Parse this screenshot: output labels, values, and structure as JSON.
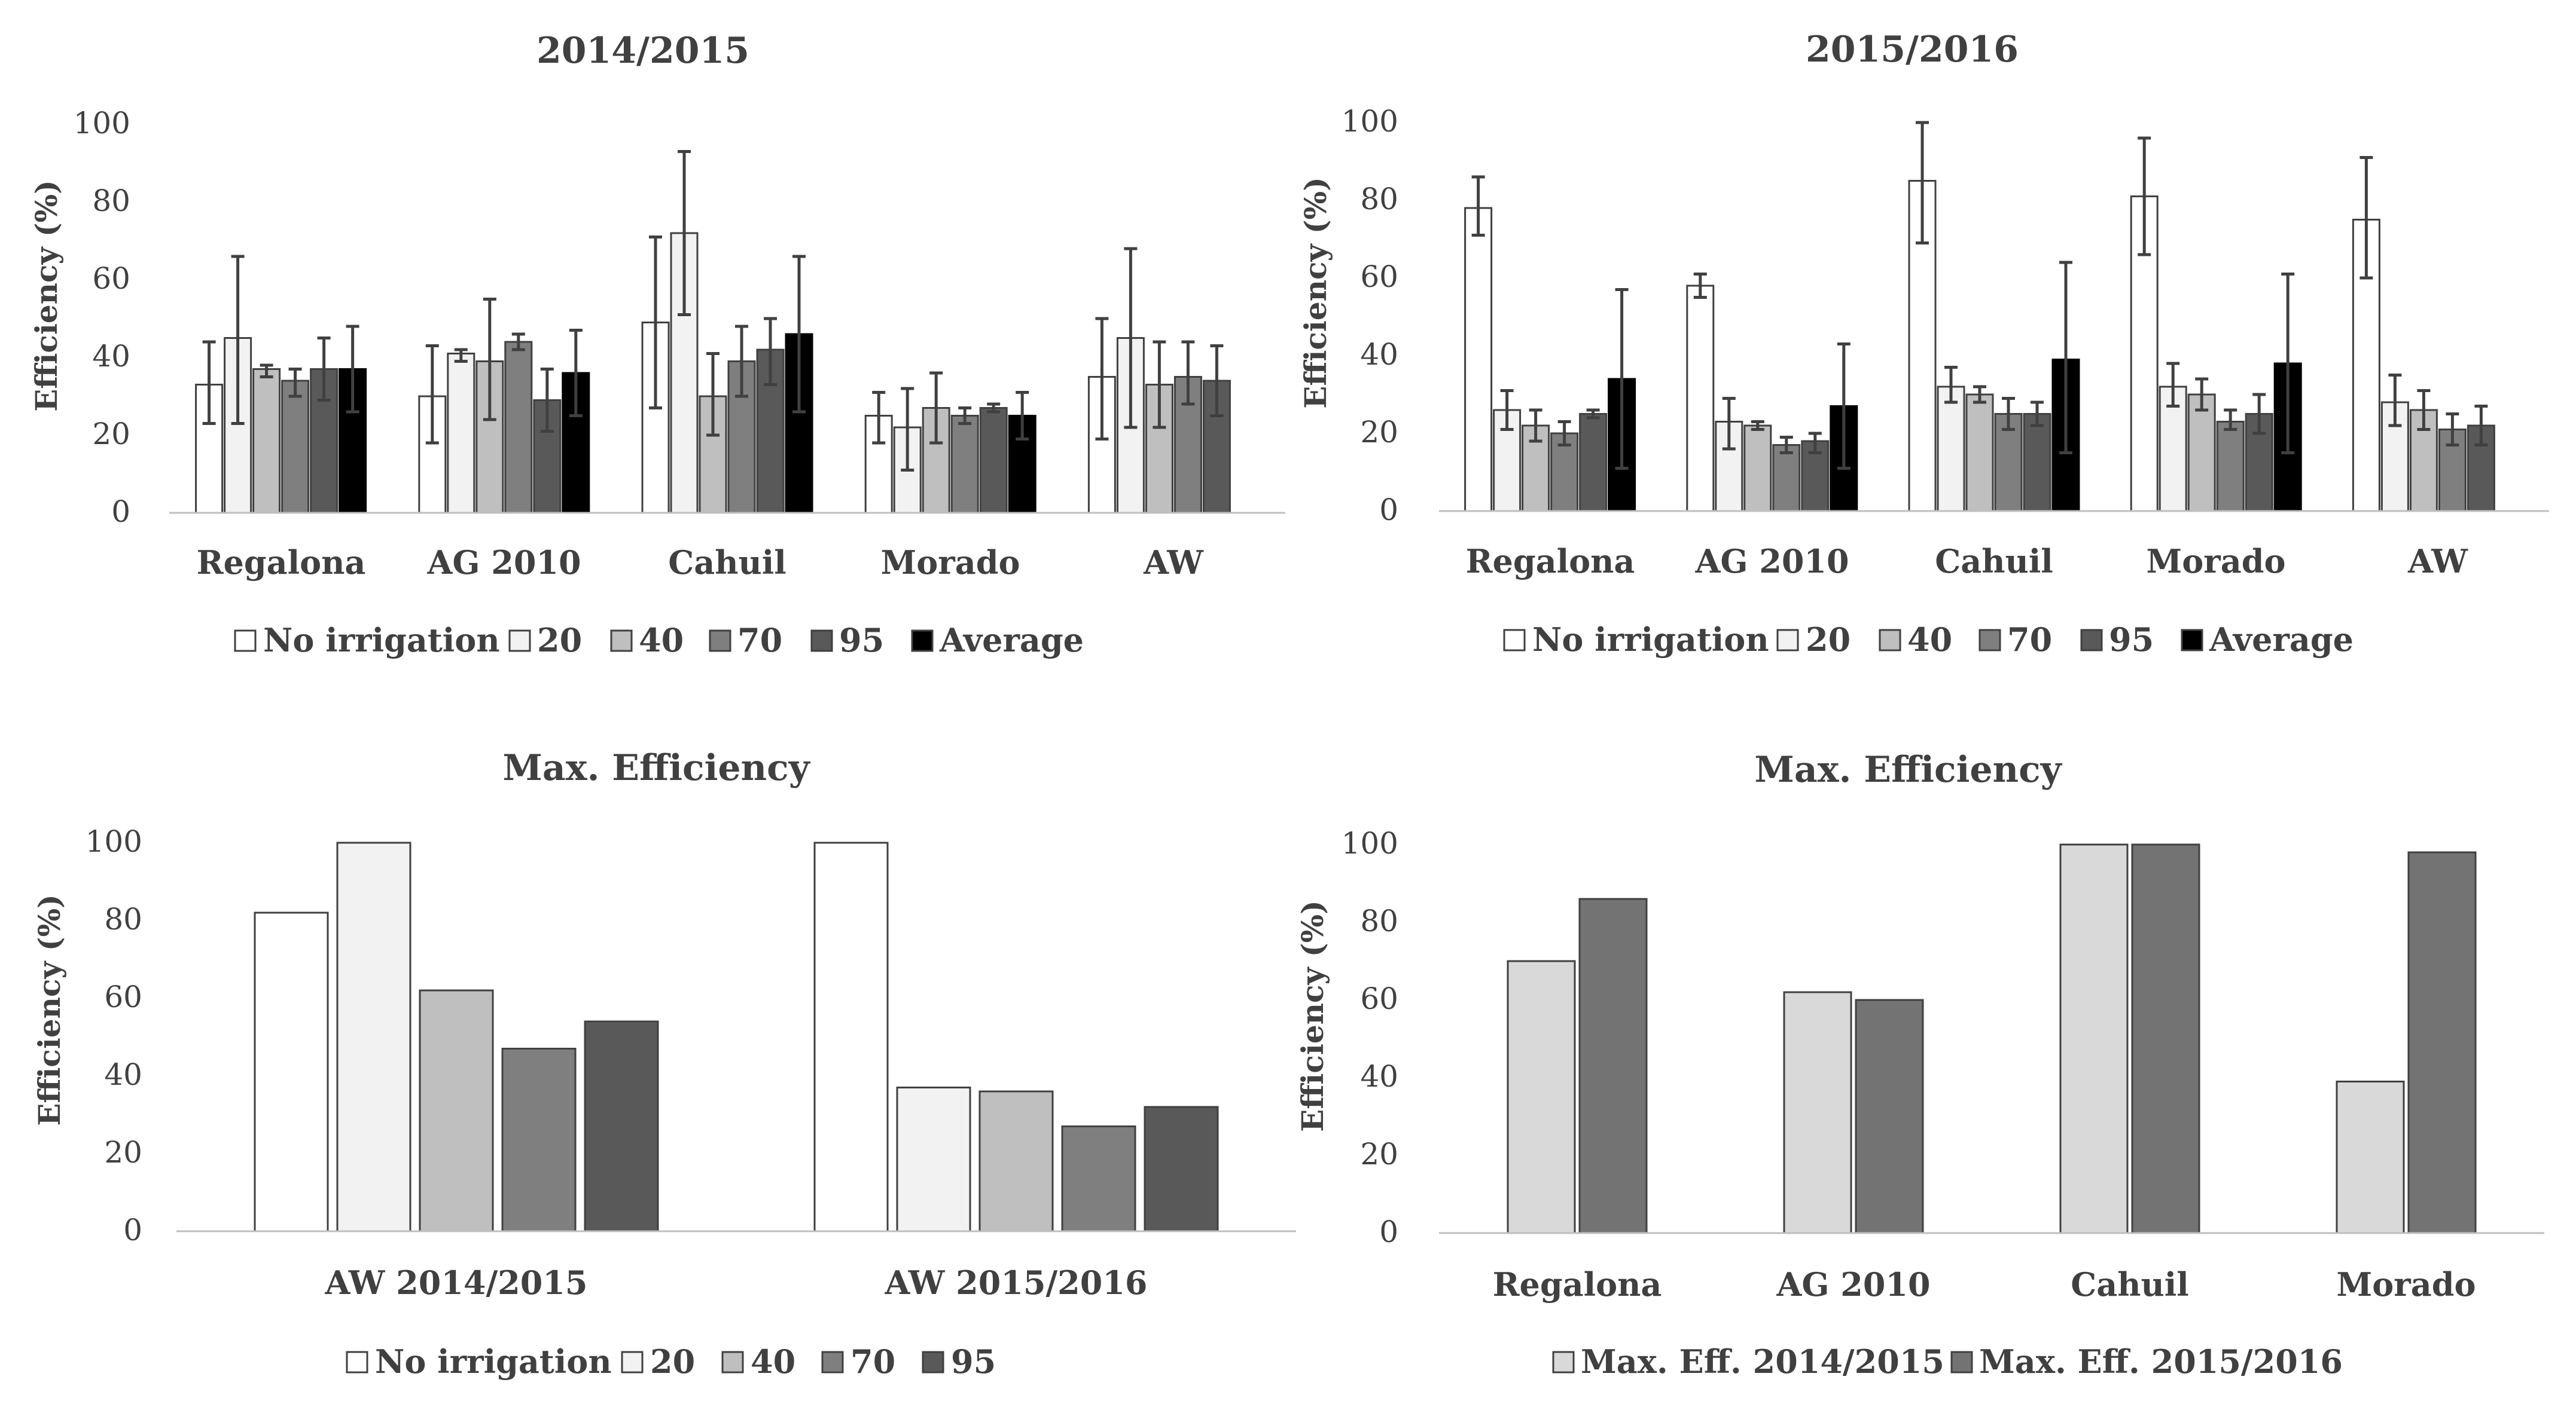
{
  "colors": {
    "no_irrigation": "#ffffff",
    "c20": "#f2f2f2",
    "c40": "#bfbfbf",
    "c70": "#7f7f7f",
    "c95": "#595959",
    "average": "#000000",
    "max2014": "#d9d9d9",
    "max2015": "#737373",
    "axis": "#bfbfbf",
    "text": "#404040"
  },
  "chart_data": [
    {
      "id": "chart1",
      "type": "bar",
      "title": "2014/2015",
      "xlabel": "",
      "ylabel": "Efficiency (%)",
      "ylim": [
        0,
        100
      ],
      "yticks": [
        "0",
        "20",
        "40",
        "60",
        "80",
        "100"
      ],
      "categories": [
        "Regalona",
        "AG 2010",
        "Cahuil",
        "Morado",
        "AW"
      ],
      "legend_position": "bottom",
      "series": [
        {
          "name": "No irrigation",
          "color_key": "no_irrigation",
          "values": [
            33,
            30,
            49,
            25,
            35
          ],
          "err_low": [
            23,
            18,
            27,
            18,
            19
          ],
          "err_high": [
            44,
            43,
            71,
            31,
            50
          ]
        },
        {
          "name": "20",
          "color_key": "c20",
          "values": [
            45,
            41,
            72,
            22,
            45
          ],
          "err_low": [
            23,
            39,
            51,
            11,
            22
          ],
          "err_high": [
            66,
            42,
            93,
            32,
            68
          ]
        },
        {
          "name": "40",
          "color_key": "c40",
          "values": [
            37,
            39,
            30,
            27,
            33
          ],
          "err_low": [
            35,
            24,
            20,
            18,
            22
          ],
          "err_high": [
            38,
            55,
            41,
            36,
            44
          ]
        },
        {
          "name": "70",
          "color_key": "c70",
          "values": [
            34,
            44,
            39,
            25,
            35
          ],
          "err_low": [
            30,
            42,
            30,
            23,
            28
          ],
          "err_high": [
            37,
            46,
            48,
            27,
            44
          ]
        },
        {
          "name": "95",
          "color_key": "c95",
          "values": [
            37,
            29,
            42,
            27,
            34
          ],
          "err_low": [
            29,
            21,
            33,
            26,
            25
          ],
          "err_high": [
            45,
            37,
            50,
            28,
            43
          ]
        },
        {
          "name": "Average",
          "color_key": "average",
          "values": [
            37,
            36,
            46,
            25,
            null
          ],
          "err_low": [
            26,
            25,
            26,
            19,
            null
          ],
          "err_high": [
            48,
            47,
            66,
            31,
            null
          ]
        }
      ]
    },
    {
      "id": "chart2",
      "type": "bar",
      "title": "2015/2016",
      "xlabel": "",
      "ylabel": "Efficiency (%)",
      "ylim": [
        0,
        100
      ],
      "yticks": [
        "0",
        "20",
        "40",
        "60",
        "80",
        "100"
      ],
      "categories": [
        "Regalona",
        "AG 2010",
        "Cahuil",
        "Morado",
        "AW"
      ],
      "legend_position": "bottom",
      "series": [
        {
          "name": "No irrigation",
          "color_key": "no_irrigation",
          "values": [
            78,
            58,
            85,
            81,
            75
          ],
          "err_low": [
            71,
            55,
            69,
            66,
            60
          ],
          "err_high": [
            86,
            61,
            100,
            96,
            91
          ]
        },
        {
          "name": "20",
          "color_key": "c20",
          "values": [
            26,
            23,
            32,
            32,
            28
          ],
          "err_low": [
            21,
            16,
            28,
            27,
            22
          ],
          "err_high": [
            31,
            29,
            37,
            38,
            35
          ]
        },
        {
          "name": "40",
          "color_key": "c40",
          "values": [
            22,
            22,
            30,
            30,
            26
          ],
          "err_low": [
            18,
            21,
            28,
            26,
            21
          ],
          "err_high": [
            26,
            23,
            32,
            34,
            31
          ]
        },
        {
          "name": "70",
          "color_key": "c70",
          "values": [
            20,
            17,
            25,
            23,
            21
          ],
          "err_low": [
            17,
            15,
            21,
            21,
            17
          ],
          "err_high": [
            23,
            19,
            29,
            26,
            25
          ]
        },
        {
          "name": "95",
          "color_key": "c95",
          "values": [
            25,
            18,
            25,
            25,
            22
          ],
          "err_low": [
            24,
            15,
            22,
            20,
            17
          ],
          "err_high": [
            26,
            20,
            28,
            30,
            27
          ]
        },
        {
          "name": "Average",
          "color_key": "average",
          "values": [
            34,
            27,
            39,
            38,
            null
          ],
          "err_low": [
            11,
            11,
            15,
            15,
            null
          ],
          "err_high": [
            57,
            43,
            64,
            61,
            null
          ]
        }
      ]
    },
    {
      "id": "chart3",
      "type": "bar",
      "title": "Max. Efficiency",
      "xlabel": "",
      "ylabel": "Efficiency (%)",
      "ylim": [
        0,
        100
      ],
      "yticks": [
        "0",
        "20",
        "40",
        "60",
        "80",
        "100"
      ],
      "categories": [
        "AW 2014/2015",
        "AW 2015/2016"
      ],
      "legend_position": "bottom",
      "series": [
        {
          "name": "No irrigation",
          "color_key": "no_irrigation",
          "values": [
            82,
            100
          ]
        },
        {
          "name": "20",
          "color_key": "c20",
          "values": [
            100,
            37
          ]
        },
        {
          "name": "40",
          "color_key": "c40",
          "values": [
            62,
            36
          ]
        },
        {
          "name": "70",
          "color_key": "c70",
          "values": [
            47,
            27
          ]
        },
        {
          "name": "95",
          "color_key": "c95",
          "values": [
            54,
            32
          ]
        }
      ]
    },
    {
      "id": "chart4",
      "type": "bar",
      "title": "Max. Efficiency",
      "xlabel": "",
      "ylabel": "Efficiency (%)",
      "ylim": [
        0,
        100
      ],
      "yticks": [
        "0",
        "20",
        "40",
        "60",
        "80",
        "100"
      ],
      "categories": [
        "Regalona",
        "AG 2010",
        "Cahuil",
        "Morado"
      ],
      "legend_position": "bottom",
      "series": [
        {
          "name": "Max. Eff. 2014/2015",
          "color_key": "max2014",
          "values": [
            70,
            62,
            100,
            39
          ]
        },
        {
          "name": "Max. Eff. 2015/2016",
          "color_key": "max2015",
          "values": [
            86,
            60,
            100,
            98
          ]
        }
      ]
    }
  ]
}
